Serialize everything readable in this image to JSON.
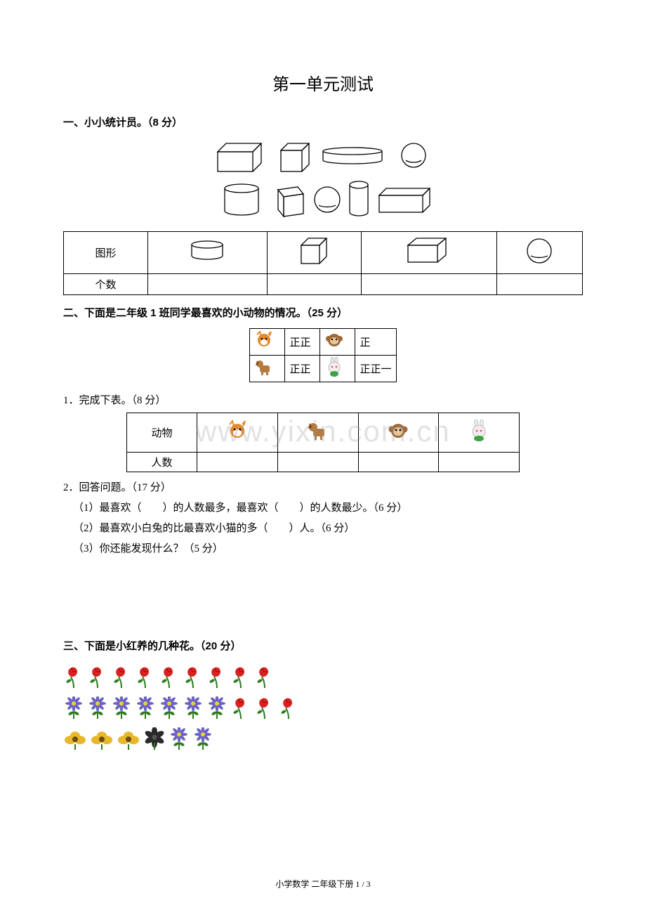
{
  "page_title": "第一单元测试",
  "section1": {
    "heading": "一、小小统计员。（8 分）",
    "table_row_label": "图形",
    "table_count_label": "个数"
  },
  "section2": {
    "heading": "二、下面是二年级 1 班同学最喜欢的小动物的情况。（25 分）",
    "tally": {
      "fox": "正正",
      "monkey": "正",
      "dog": "正正𠀁",
      "rabbit": "正正一"
    },
    "q1": "1．完成下表。（8 分）",
    "table_animal_label": "动物",
    "table_count_label": "人数",
    "q2": "2．回答问题。（17 分）",
    "q2_1": "（1）最喜欢（　　）的人数最多，最喜欢（　　）的人数最少。（6 分）",
    "q2_2": "（2）最喜欢小白兔的比最喜欢小猫的多（　　）人。（6 分）",
    "q2_3": "（3）你还能发现什么？（5 分）"
  },
  "section3": {
    "heading": "三、下面是小红养的几种花。（20 分）"
  },
  "watermark": "www.yixin.com.cn",
  "footer": "小学数学 二年级下册 1 / 3",
  "colors": {
    "text": "#000000",
    "background": "#ffffff",
    "border": "#000000",
    "watermark": "rgba(150,150,150,0.28)",
    "rose_red": "#d9201f",
    "rose_stem": "#2e7a1e",
    "purple_flower": "#6a62c4",
    "yellow_flower": "#e8b82a",
    "yellow_center": "#6b4b16",
    "black_flower": "#2a2a2a",
    "fox_orange": "#e58a2e",
    "monkey_brown": "#a0693a",
    "dog_brown": "#b57a3e",
    "rabbit_white": "#f4ecec",
    "rabbit_green": "#3aa247"
  },
  "flower_rows": [
    {
      "types": [
        "rose",
        "rose",
        "rose",
        "rose",
        "rose",
        "rose",
        "rose",
        "rose",
        "rose"
      ]
    },
    {
      "types": [
        "purple",
        "purple",
        "purple",
        "purple",
        "purple",
        "purple",
        "purple",
        "rose",
        "rose",
        "rose"
      ]
    },
    {
      "types": [
        "yellow",
        "yellow",
        "yellow",
        "black",
        "purple",
        "purple"
      ]
    }
  ],
  "shapes_display": {
    "row1": [
      "cuboid",
      "cube",
      "cylinder-flat",
      "sphere"
    ],
    "row2": [
      "cylinder",
      "cube",
      "sphere",
      "cylinder-tall",
      "cuboid"
    ]
  }
}
